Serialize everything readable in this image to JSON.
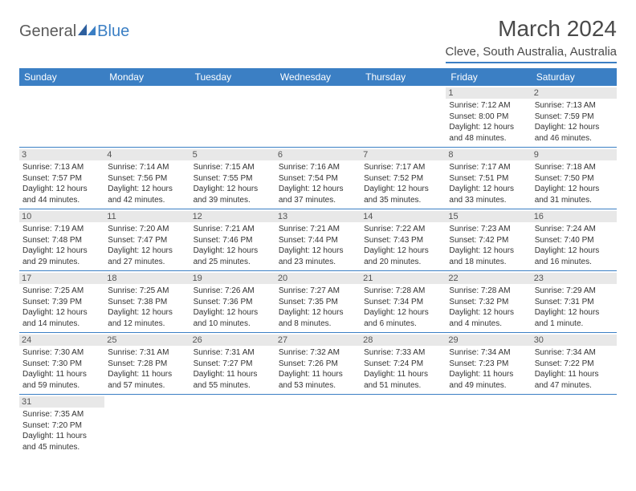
{
  "logo": {
    "textGeneral": "General",
    "textBlue": "Blue"
  },
  "title": "March 2024",
  "location": "Cleve, South Australia, Australia",
  "colors": {
    "headerBg": "#3b7fc4",
    "headerText": "#ffffff",
    "dayBarBg": "#e8e8e8",
    "bodyText": "#333333",
    "borderColor": "#3b7fc4"
  },
  "weekdays": [
    "Sunday",
    "Monday",
    "Tuesday",
    "Wednesday",
    "Thursday",
    "Friday",
    "Saturday"
  ],
  "days": [
    {
      "n": "1",
      "sunrise": "Sunrise: 7:12 AM",
      "sunset": "Sunset: 8:00 PM",
      "daylight": "Daylight: 12 hours and 48 minutes."
    },
    {
      "n": "2",
      "sunrise": "Sunrise: 7:13 AM",
      "sunset": "Sunset: 7:59 PM",
      "daylight": "Daylight: 12 hours and 46 minutes."
    },
    {
      "n": "3",
      "sunrise": "Sunrise: 7:13 AM",
      "sunset": "Sunset: 7:57 PM",
      "daylight": "Daylight: 12 hours and 44 minutes."
    },
    {
      "n": "4",
      "sunrise": "Sunrise: 7:14 AM",
      "sunset": "Sunset: 7:56 PM",
      "daylight": "Daylight: 12 hours and 42 minutes."
    },
    {
      "n": "5",
      "sunrise": "Sunrise: 7:15 AM",
      "sunset": "Sunset: 7:55 PM",
      "daylight": "Daylight: 12 hours and 39 minutes."
    },
    {
      "n": "6",
      "sunrise": "Sunrise: 7:16 AM",
      "sunset": "Sunset: 7:54 PM",
      "daylight": "Daylight: 12 hours and 37 minutes."
    },
    {
      "n": "7",
      "sunrise": "Sunrise: 7:17 AM",
      "sunset": "Sunset: 7:52 PM",
      "daylight": "Daylight: 12 hours and 35 minutes."
    },
    {
      "n": "8",
      "sunrise": "Sunrise: 7:17 AM",
      "sunset": "Sunset: 7:51 PM",
      "daylight": "Daylight: 12 hours and 33 minutes."
    },
    {
      "n": "9",
      "sunrise": "Sunrise: 7:18 AM",
      "sunset": "Sunset: 7:50 PM",
      "daylight": "Daylight: 12 hours and 31 minutes."
    },
    {
      "n": "10",
      "sunrise": "Sunrise: 7:19 AM",
      "sunset": "Sunset: 7:48 PM",
      "daylight": "Daylight: 12 hours and 29 minutes."
    },
    {
      "n": "11",
      "sunrise": "Sunrise: 7:20 AM",
      "sunset": "Sunset: 7:47 PM",
      "daylight": "Daylight: 12 hours and 27 minutes."
    },
    {
      "n": "12",
      "sunrise": "Sunrise: 7:21 AM",
      "sunset": "Sunset: 7:46 PM",
      "daylight": "Daylight: 12 hours and 25 minutes."
    },
    {
      "n": "13",
      "sunrise": "Sunrise: 7:21 AM",
      "sunset": "Sunset: 7:44 PM",
      "daylight": "Daylight: 12 hours and 23 minutes."
    },
    {
      "n": "14",
      "sunrise": "Sunrise: 7:22 AM",
      "sunset": "Sunset: 7:43 PM",
      "daylight": "Daylight: 12 hours and 20 minutes."
    },
    {
      "n": "15",
      "sunrise": "Sunrise: 7:23 AM",
      "sunset": "Sunset: 7:42 PM",
      "daylight": "Daylight: 12 hours and 18 minutes."
    },
    {
      "n": "16",
      "sunrise": "Sunrise: 7:24 AM",
      "sunset": "Sunset: 7:40 PM",
      "daylight": "Daylight: 12 hours and 16 minutes."
    },
    {
      "n": "17",
      "sunrise": "Sunrise: 7:25 AM",
      "sunset": "Sunset: 7:39 PM",
      "daylight": "Daylight: 12 hours and 14 minutes."
    },
    {
      "n": "18",
      "sunrise": "Sunrise: 7:25 AM",
      "sunset": "Sunset: 7:38 PM",
      "daylight": "Daylight: 12 hours and 12 minutes."
    },
    {
      "n": "19",
      "sunrise": "Sunrise: 7:26 AM",
      "sunset": "Sunset: 7:36 PM",
      "daylight": "Daylight: 12 hours and 10 minutes."
    },
    {
      "n": "20",
      "sunrise": "Sunrise: 7:27 AM",
      "sunset": "Sunset: 7:35 PM",
      "daylight": "Daylight: 12 hours and 8 minutes."
    },
    {
      "n": "21",
      "sunrise": "Sunrise: 7:28 AM",
      "sunset": "Sunset: 7:34 PM",
      "daylight": "Daylight: 12 hours and 6 minutes."
    },
    {
      "n": "22",
      "sunrise": "Sunrise: 7:28 AM",
      "sunset": "Sunset: 7:32 PM",
      "daylight": "Daylight: 12 hours and 4 minutes."
    },
    {
      "n": "23",
      "sunrise": "Sunrise: 7:29 AM",
      "sunset": "Sunset: 7:31 PM",
      "daylight": "Daylight: 12 hours and 1 minute."
    },
    {
      "n": "24",
      "sunrise": "Sunrise: 7:30 AM",
      "sunset": "Sunset: 7:30 PM",
      "daylight": "Daylight: 11 hours and 59 minutes."
    },
    {
      "n": "25",
      "sunrise": "Sunrise: 7:31 AM",
      "sunset": "Sunset: 7:28 PM",
      "daylight": "Daylight: 11 hours and 57 minutes."
    },
    {
      "n": "26",
      "sunrise": "Sunrise: 7:31 AM",
      "sunset": "Sunset: 7:27 PM",
      "daylight": "Daylight: 11 hours and 55 minutes."
    },
    {
      "n": "27",
      "sunrise": "Sunrise: 7:32 AM",
      "sunset": "Sunset: 7:26 PM",
      "daylight": "Daylight: 11 hours and 53 minutes."
    },
    {
      "n": "28",
      "sunrise": "Sunrise: 7:33 AM",
      "sunset": "Sunset: 7:24 PM",
      "daylight": "Daylight: 11 hours and 51 minutes."
    },
    {
      "n": "29",
      "sunrise": "Sunrise: 7:34 AM",
      "sunset": "Sunset: 7:23 PM",
      "daylight": "Daylight: 11 hours and 49 minutes."
    },
    {
      "n": "30",
      "sunrise": "Sunrise: 7:34 AM",
      "sunset": "Sunset: 7:22 PM",
      "daylight": "Daylight: 11 hours and 47 minutes."
    },
    {
      "n": "31",
      "sunrise": "Sunrise: 7:35 AM",
      "sunset": "Sunset: 7:20 PM",
      "daylight": "Daylight: 11 hours and 45 minutes."
    }
  ],
  "firstDayOffset": 5
}
